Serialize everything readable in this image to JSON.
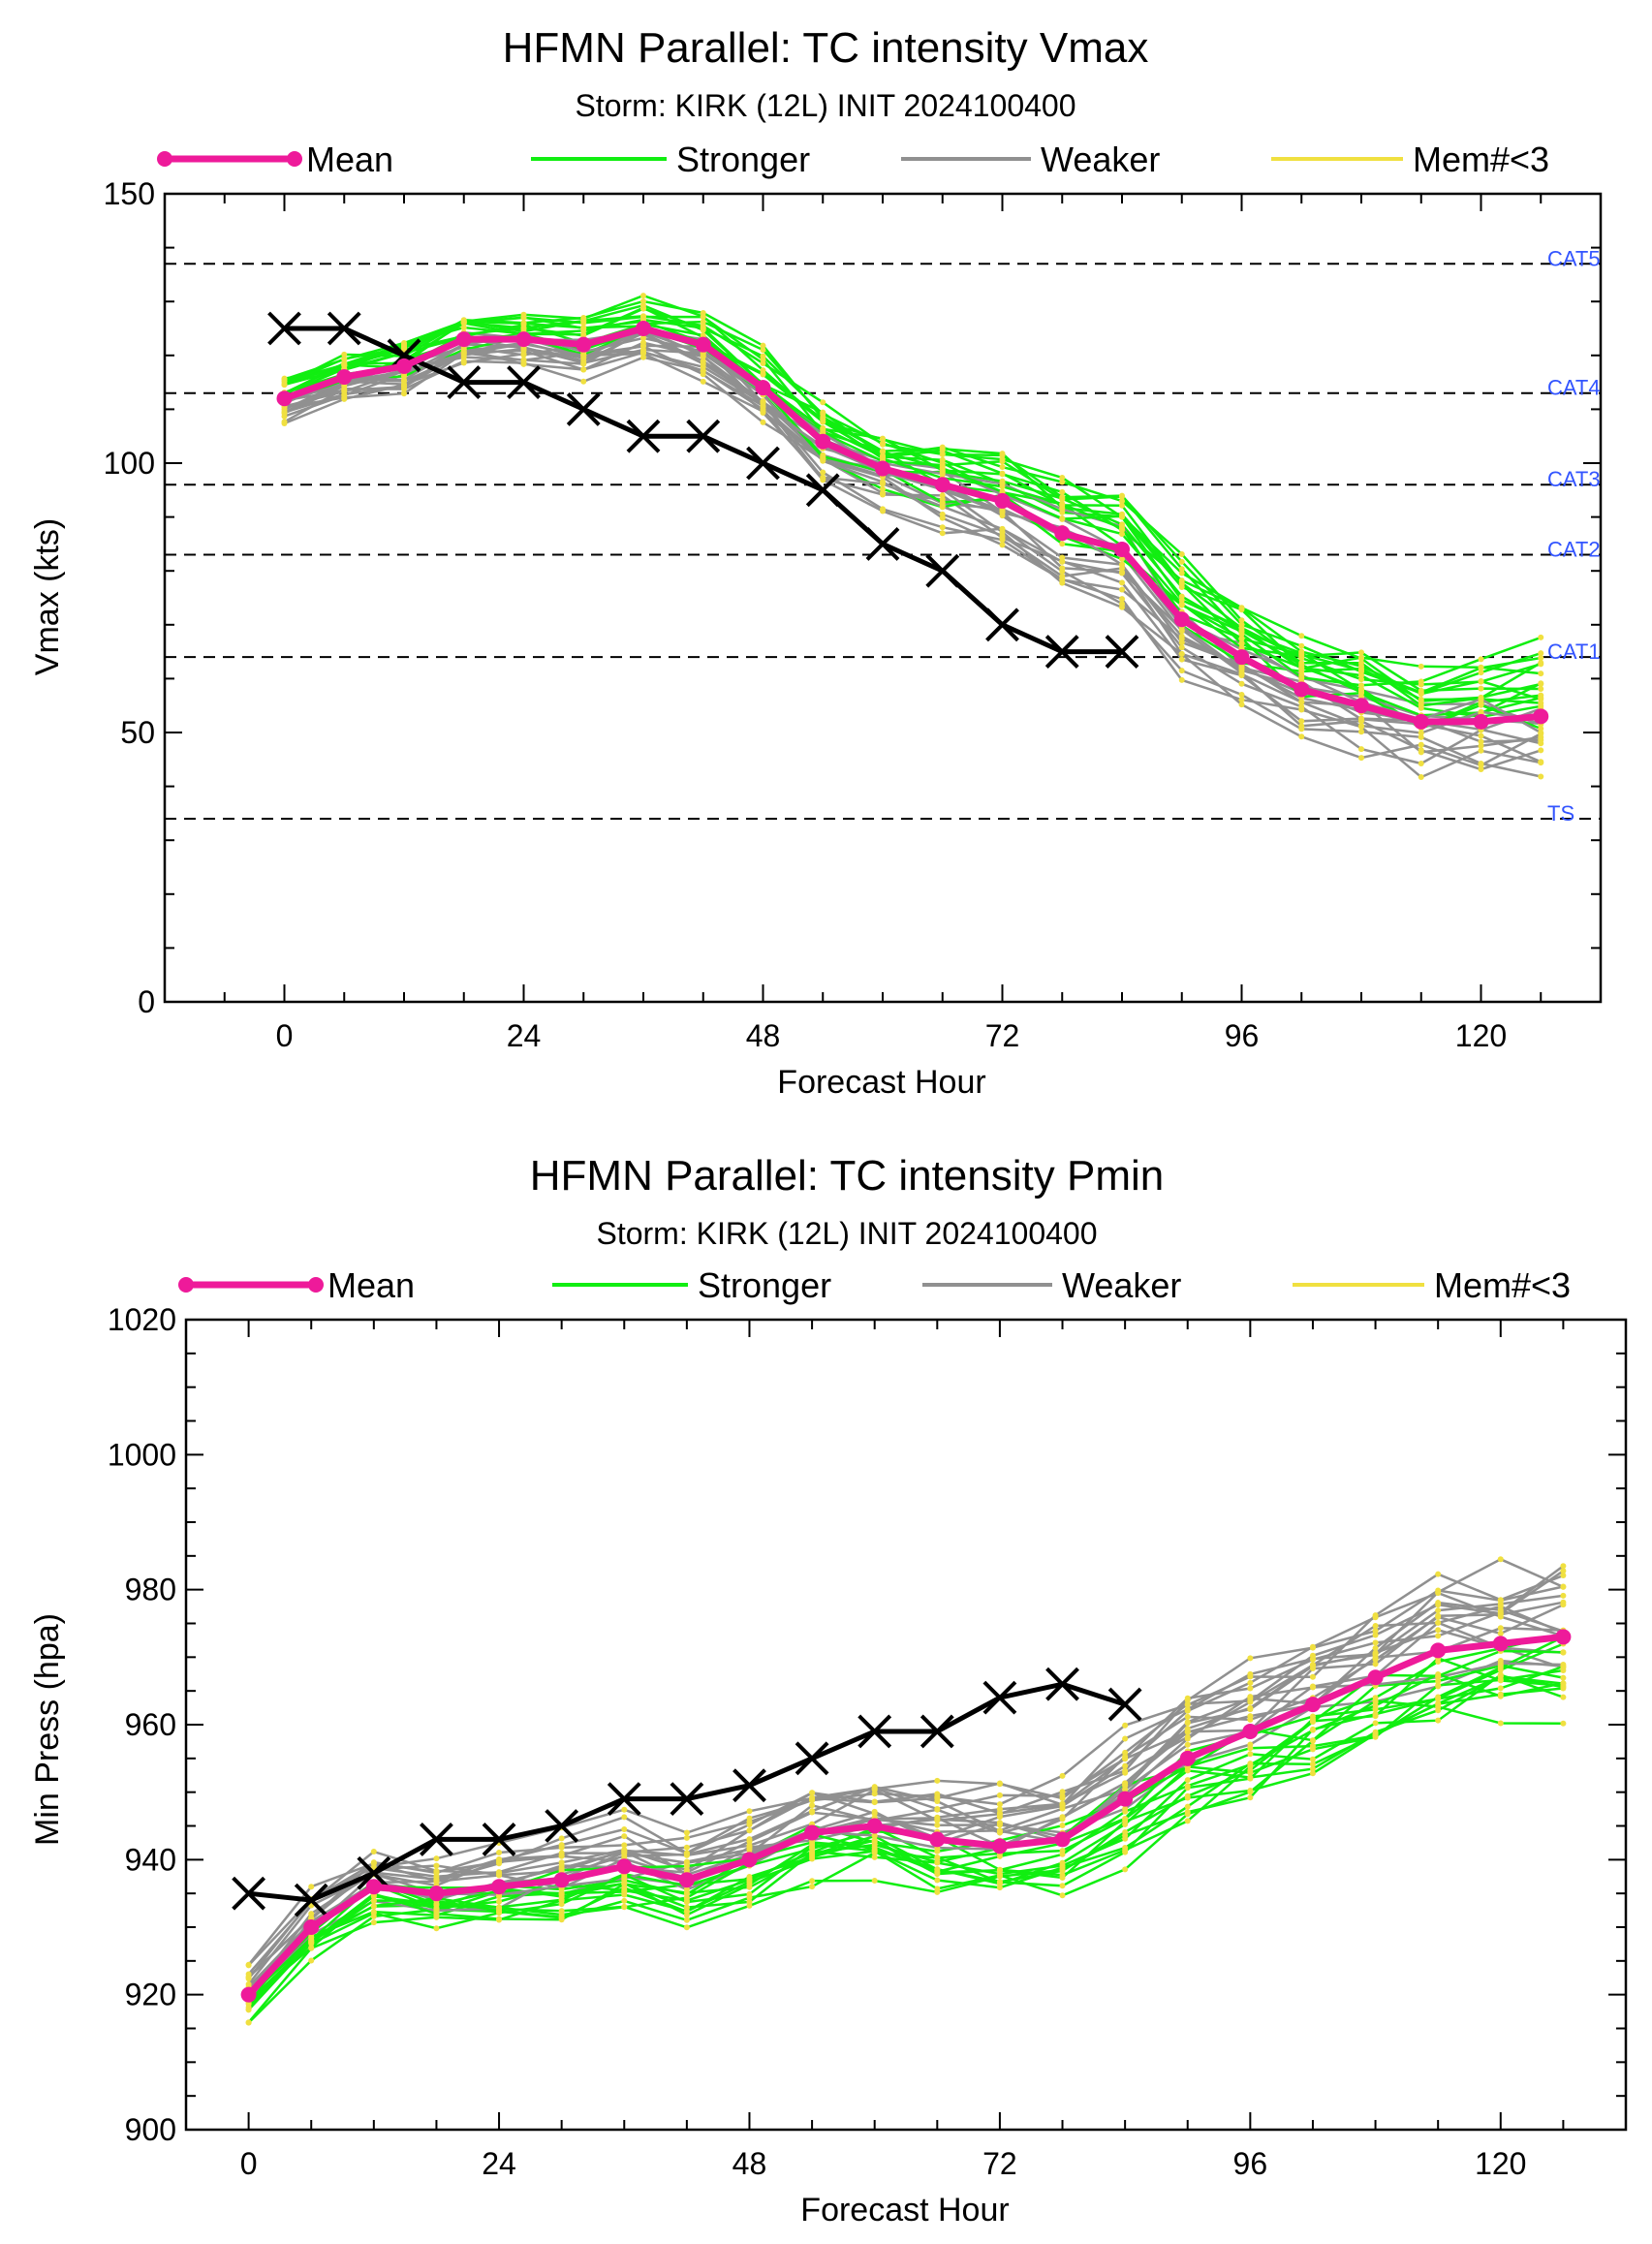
{
  "colors": {
    "mean": "#ee1a9a",
    "stronger": "#11ee11",
    "weaker": "#909090",
    "memlt3": "#f0e040",
    "obs": "#000000",
    "cat": "#3355ff"
  },
  "legend": {
    "mean": "Mean",
    "stronger": "Stronger",
    "weaker": "Weaker",
    "memlt3": "Mem#<3"
  },
  "chart_data": [
    {
      "id": "vmax",
      "type": "line",
      "title": "HFMN Parallel: TC intensity Vmax",
      "subtitle": "Storm: KIRK (12L) INIT 2024100400",
      "xlabel": "Forecast Hour",
      "ylabel": "Vmax (kts)",
      "xlim": [
        -12,
        132
      ],
      "ylim": [
        0,
        150
      ],
      "xticks": [
        0,
        24,
        48,
        72,
        96,
        120
      ],
      "yticks": [
        0,
        50,
        100,
        150
      ],
      "ref_lines": [
        {
          "label": "CAT5",
          "value": 137
        },
        {
          "label": "CAT4",
          "value": 113
        },
        {
          "label": "CAT3",
          "value": 96
        },
        {
          "label": "CAT2",
          "value": 83
        },
        {
          "label": "CAT1",
          "value": 64
        },
        {
          "label": "TS",
          "value": 34
        }
      ],
      "x": [
        0,
        6,
        12,
        18,
        24,
        30,
        36,
        42,
        48,
        54,
        60,
        66,
        72,
        78,
        84,
        90,
        96,
        102,
        108,
        114,
        120,
        126
      ],
      "mean": [
        112,
        116,
        118,
        123,
        123,
        122,
        125,
        122,
        114,
        104,
        99,
        96,
        93,
        87,
        84,
        71,
        64,
        58,
        55,
        52,
        52,
        53
      ],
      "observed": {
        "x": [
          0,
          6,
          12,
          18,
          24,
          30,
          36,
          42,
          48,
          54,
          60,
          66,
          72,
          78,
          84
        ],
        "y": [
          125,
          125,
          120,
          115,
          115,
          110,
          105,
          105,
          100,
          95,
          85,
          80,
          70,
          65,
          65
        ]
      }
    },
    {
      "id": "pmin",
      "type": "line",
      "title": "HFMN Parallel: TC intensity Pmin",
      "subtitle": "Storm: KIRK (12L) INIT 2024100400",
      "xlabel": "Forecast Hour",
      "ylabel": "Min Press (hpa)",
      "xlim": [
        -6,
        132
      ],
      "ylim": [
        900,
        1020
      ],
      "xticks": [
        0,
        24,
        48,
        72,
        96,
        120
      ],
      "yticks": [
        900,
        920,
        940,
        960,
        980,
        1000,
        1020
      ],
      "x": [
        0,
        6,
        12,
        18,
        24,
        30,
        36,
        42,
        48,
        54,
        60,
        66,
        72,
        78,
        84,
        90,
        96,
        102,
        108,
        114,
        120,
        126
      ],
      "mean": [
        920,
        930,
        936,
        935,
        936,
        937,
        939,
        937,
        940,
        944,
        945,
        943,
        942,
        943,
        949,
        955,
        959,
        963,
        967,
        971,
        972,
        973
      ],
      "observed": {
        "x": [
          0,
          6,
          12,
          18,
          24,
          30,
          36,
          42,
          48,
          54,
          60,
          66,
          72,
          78,
          84
        ],
        "y": [
          935,
          934,
          938,
          943,
          943,
          945,
          949,
          949,
          951,
          955,
          959,
          959,
          964,
          966,
          963
        ]
      }
    }
  ]
}
